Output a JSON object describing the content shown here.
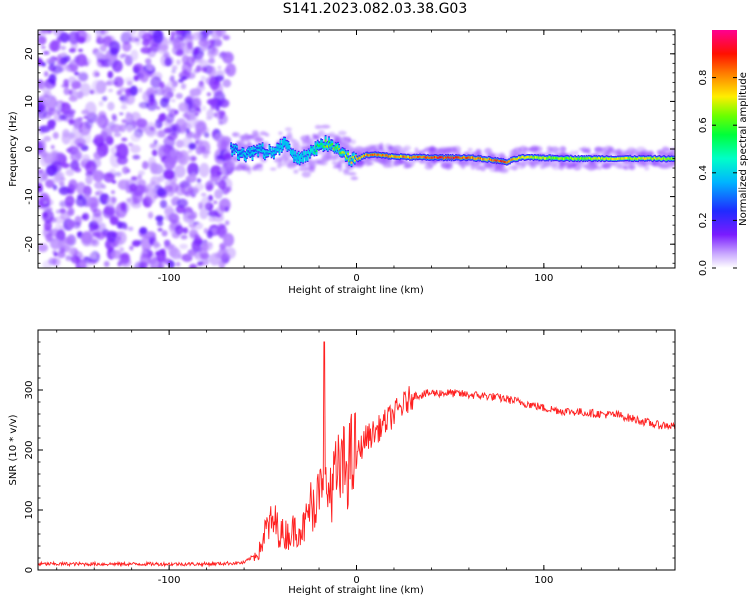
{
  "title": "S141.2023.082.03.38.G03",
  "chart_data": [
    {
      "type": "heatmap",
      "xlabel": "Height of straight line (km)",
      "ylabel": "Frequency (Hz)",
      "xlim": [
        -170,
        170
      ],
      "ylim": [
        -25,
        25
      ],
      "x_ticks": [
        -100,
        0,
        100
      ],
      "y_ticks": [
        -20,
        -10,
        0,
        10,
        20
      ],
      "noise_region_x": [
        -170,
        -67
      ],
      "signal_track": {
        "x": [
          -67,
          -60,
          -52,
          -45,
          -38,
          -32,
          -26,
          -20,
          -15,
          -10,
          -6,
          -3,
          0,
          5,
          10,
          20,
          30,
          40,
          50,
          60,
          70,
          76,
          80,
          84,
          88,
          95,
          105,
          120,
          140,
          160,
          170
        ],
        "y": [
          0,
          -1.2,
          -0.3,
          -0.8,
          1.2,
          -2.2,
          -1.3,
          0.8,
          1.2,
          0,
          -1.0,
          -2.2,
          -2.2,
          -1.3,
          -1.2,
          -1.6,
          -1.7,
          -1.8,
          -1.8,
          -1.8,
          -2.2,
          -2.5,
          -2.8,
          -2.2,
          -1.8,
          -1.8,
          -1.9,
          -2.0,
          -2.0,
          -2.0,
          -2.1
        ],
        "amplitude": [
          0.25,
          0.3,
          0.3,
          0.35,
          0.4,
          0.4,
          0.45,
          0.6,
          0.7,
          0.7,
          0.75,
          0.75,
          0.8,
          0.85,
          0.9,
          0.85,
          0.85,
          0.95,
          0.95,
          0.9,
          0.85,
          0.95,
          0.9,
          0.8,
          0.8,
          0.75,
          0.7,
          0.7,
          0.75,
          0.75,
          0.7
        ]
      },
      "colorbar": {
        "label": "Normalized spectral amplitude",
        "range": [
          0,
          1
        ],
        "ticks": [
          0.0,
          0.2,
          0.4,
          0.6,
          0.8
        ]
      }
    },
    {
      "type": "line",
      "xlabel": "Height of straight line (km)",
      "ylabel": "SNR (10 * v/v)",
      "xlim": [
        -170,
        170
      ],
      "ylim": [
        0,
        400
      ],
      "x_ticks": [
        -100,
        0,
        100
      ],
      "y_ticks": [
        0,
        100,
        200,
        300
      ],
      "color": "#ff2020",
      "series": [
        {
          "x": [
            -170,
            -140,
            -110,
            -80,
            -60,
            -52,
            -48,
            -44,
            -40,
            -36,
            -32,
            -28,
            -24,
            -20,
            -16,
            -12,
            -8,
            -4,
            0,
            5,
            10,
            15,
            20,
            25,
            30,
            40,
            50,
            60,
            70,
            80,
            90,
            100,
            110,
            120,
            130,
            140,
            150,
            160,
            170
          ],
          "y": [
            10,
            10,
            10,
            10,
            12,
            30,
            70,
            80,
            60,
            60,
            70,
            70,
            110,
            120,
            130,
            150,
            165,
            180,
            190,
            220,
            230,
            245,
            260,
            275,
            290,
            295,
            295,
            292,
            290,
            285,
            278,
            270,
            265,
            263,
            260,
            258,
            250,
            242,
            240
          ]
        }
      ]
    }
  ]
}
